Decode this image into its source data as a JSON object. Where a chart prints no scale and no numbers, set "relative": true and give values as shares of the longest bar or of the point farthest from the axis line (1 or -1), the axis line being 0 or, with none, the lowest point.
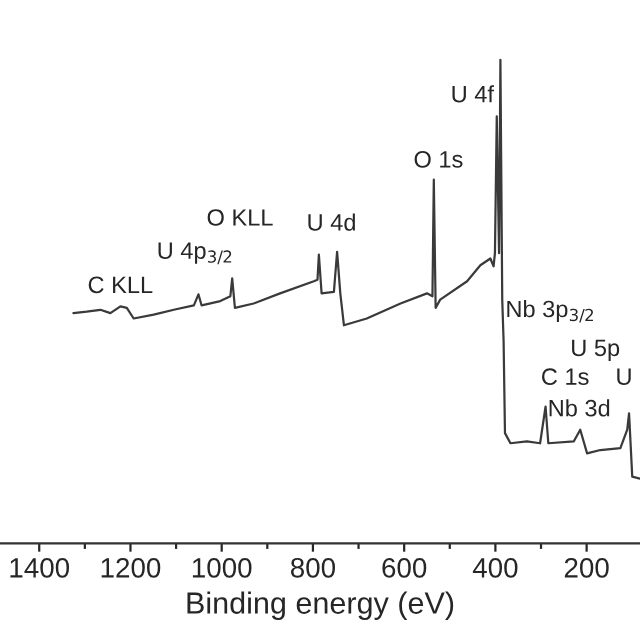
{
  "chart_data": {
    "type": "line",
    "relative": true,
    "xlabel": "Binding energy (eV)",
    "xlim": [
      1486,
      83
    ],
    "xticks": [
      1400,
      {
        "value": 1300,
        "label": null
      },
      1200,
      {
        "value": 1100,
        "label": null
      },
      1000,
      {
        "value": 900,
        "label": null
      },
      800,
      {
        "value": 700,
        "label": null
      },
      600,
      {
        "value": 500,
        "label": null
      },
      400,
      {
        "value": 300,
        "label": null
      },
      200
    ],
    "grid": false,
    "legend": false,
    "marker": "none",
    "line_style": "solid",
    "series": [
      {
        "color": "#3a3a3a",
        "x": [
          1325,
          1296,
          1266,
          1244,
          1222,
          1208,
          1193,
          1149,
          1105,
          1061,
          1051,
          1044,
          1003,
          981,
          977,
          971,
          930,
          872,
          798,
          790,
          787,
          781,
          754,
          747,
          740,
          732,
          682,
          608,
          550,
          538,
          535,
          531,
          521,
          462,
          433,
          411,
          404,
          401,
          397,
          392,
          389,
          385,
          382,
          379,
          367,
          331,
          302,
          290,
          284,
          228,
          214,
          199,
          170,
          126,
          111,
          107,
          100,
          83
        ],
        "values": [
          0.476,
          0.479,
          0.483,
          0.476,
          0.49,
          0.487,
          0.465,
          0.473,
          0.483,
          0.492,
          0.515,
          0.492,
          0.501,
          0.511,
          0.548,
          0.487,
          0.496,
          0.517,
          0.542,
          0.545,
          0.597,
          0.517,
          0.52,
          0.603,
          0.517,
          0.451,
          0.465,
          0.496,
          0.517,
          0.511,
          0.752,
          0.487,
          0.504,
          0.542,
          0.575,
          0.589,
          0.573,
          0.6,
          0.883,
          0.6,
          1.0,
          0.504,
          0.418,
          0.228,
          0.207,
          0.211,
          0.207,
          0.283,
          0.207,
          0.211,
          0.235,
          0.186,
          0.193,
          0.197,
          0.235,
          0.269,
          0.138,
          0.134
        ]
      }
    ],
    "annotations": [
      "C KLL",
      "U 4p$_{3/2}$",
      "O KLL",
      "U 4d",
      "O 1s",
      "U 4f",
      "Nb 3p$_{3/2}$",
      "U 5p",
      "C 1s",
      "U",
      "Nb 3d"
    ]
  }
}
